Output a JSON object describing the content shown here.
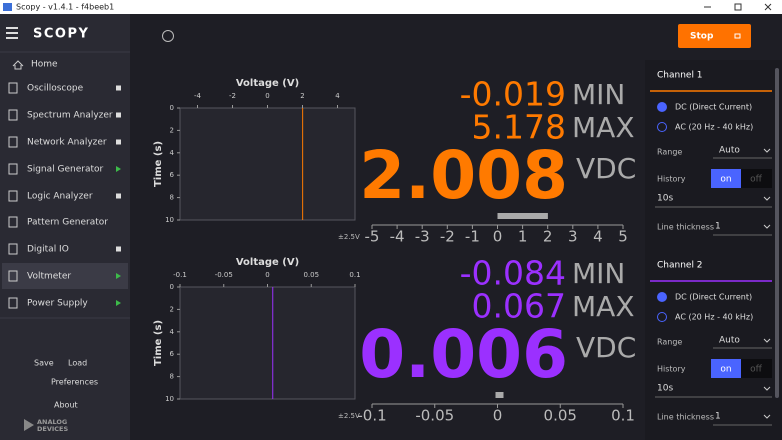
{
  "window": {
    "title": "Scopy - v1.4.1 - f4beeb1"
  },
  "sidebar": {
    "logo": "SCOPY",
    "home": "Home",
    "tools": [
      {
        "label": "Oscilloscope",
        "indicator": "square"
      },
      {
        "label": "Spectrum Analyzer",
        "indicator": "square"
      },
      {
        "label": "Network Analyzer",
        "indicator": "square"
      },
      {
        "label": "Signal Generator",
        "indicator": "play"
      },
      {
        "label": "Logic Analyzer",
        "indicator": "square"
      },
      {
        "label": "Pattern Generator",
        "indicator": "none"
      },
      {
        "label": "Digital IO",
        "indicator": "square"
      },
      {
        "label": "Voltmeter",
        "indicator": "play",
        "selected": true
      },
      {
        "label": "Power Supply",
        "indicator": "play"
      }
    ],
    "save": "Save",
    "load": "Load",
    "preferences": "Preferences",
    "about": "About",
    "brand": [
      "ANALOG",
      "DEVICES"
    ]
  },
  "toolbar": {
    "run_button": "Stop"
  },
  "channels": [
    {
      "name": "Channel 1",
      "color": "#ff7a00",
      "min": -0.019,
      "min_label": "MIN",
      "max": 5.178,
      "max_label": "MAX",
      "value": 2.008,
      "unit": "VDC",
      "history_plot": {
        "title": "Voltage (V)",
        "y_label": "Time (s)",
        "xlim": [
          -5,
          5
        ],
        "xticks": [
          -4,
          -2,
          0,
          2,
          4
        ],
        "ylim": [
          0,
          10
        ],
        "yticks": [
          0,
          2,
          4,
          6,
          8,
          10
        ]
      },
      "scale": {
        "range_label": "±2.5V",
        "xlim": [
          -5,
          5
        ],
        "xticks": [
          -5,
          -4,
          -3,
          -2,
          -1,
          0,
          1,
          2,
          3,
          4,
          5
        ]
      },
      "settings": {
        "dc": "DC (Direct Current)",
        "ac": "AC (20 Hz - 40 kHz)",
        "range_label": "Range",
        "range": "Auto",
        "history_label": "History",
        "on": "on",
        "off": "off",
        "history": "10s",
        "thickness_label": "Line thickness",
        "thickness": "1"
      }
    },
    {
      "name": "Channel 2",
      "color": "#9b30ff",
      "min": -0.084,
      "min_label": "MIN",
      "max": 0.067,
      "max_label": "MAX",
      "value": 0.006,
      "unit": "VDC",
      "history_plot": {
        "title": "Voltage (V)",
        "y_label": "Time (s)",
        "xlim": [
          -0.1,
          0.1
        ],
        "xticks": [
          -0.1,
          -0.05,
          0,
          0.05,
          0.1
        ],
        "ylim": [
          0,
          10
        ],
        "yticks": [
          0,
          2,
          4,
          6,
          8,
          10
        ]
      },
      "scale": {
        "range_label": "±2.5V",
        "xlim": [
          -0.1,
          0.1
        ],
        "xticks": [
          -0.1,
          -0.05,
          0,
          0.05,
          0.1
        ]
      },
      "settings": {
        "dc": "DC (Direct Current)",
        "ac": "AC (20 Hz - 40 kHz)",
        "range_label": "Range",
        "range": "Auto",
        "history_label": "History",
        "on": "on",
        "off": "off",
        "history": "10s",
        "thickness_label": "Line thickness",
        "thickness": "1"
      }
    }
  ]
}
